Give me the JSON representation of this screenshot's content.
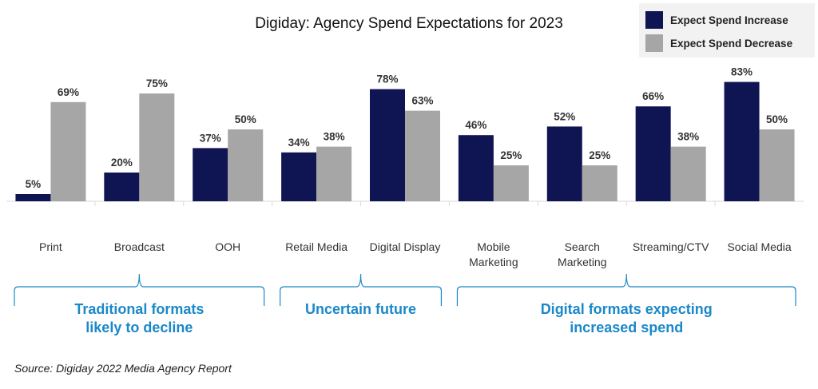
{
  "chart_data": {
    "type": "bar",
    "title": "Digiday: Agency Spend Expectations for 2023",
    "categories": [
      [
        "Print"
      ],
      [
        "Broadcast"
      ],
      [
        "OOH"
      ],
      [
        "Retail Media"
      ],
      [
        "Digital Display"
      ],
      [
        "Mobile",
        "Marketing"
      ],
      [
        "Search",
        "Marketing"
      ],
      [
        "Streaming/CTV"
      ],
      [
        "Social Media"
      ]
    ],
    "series": [
      {
        "name": "Expect Spend Increase",
        "color": "#0f1452",
        "values": [
          5,
          20,
          37,
          34,
          78,
          46,
          52,
          66,
          83
        ]
      },
      {
        "name": "Expect Spend Decrease",
        "color": "#a6a6a6",
        "values": [
          69,
          75,
          50,
          38,
          63,
          25,
          25,
          38,
          50
        ]
      }
    ],
    "value_suffix": "%",
    "ylim": [
      0,
      100
    ],
    "legend_position": "top-right",
    "groups": [
      {
        "label": [
          "Traditional formats",
          "likely to decline"
        ],
        "start": 0,
        "end": 2
      },
      {
        "label": [
          "Uncertain future"
        ],
        "start": 3,
        "end": 4
      },
      {
        "label": [
          "Digital formats expecting",
          "increased spend"
        ],
        "start": 5,
        "end": 8
      }
    ],
    "group_color": "#1a88c9",
    "source": "Source: Digiday 2022 Media Agency Report"
  }
}
